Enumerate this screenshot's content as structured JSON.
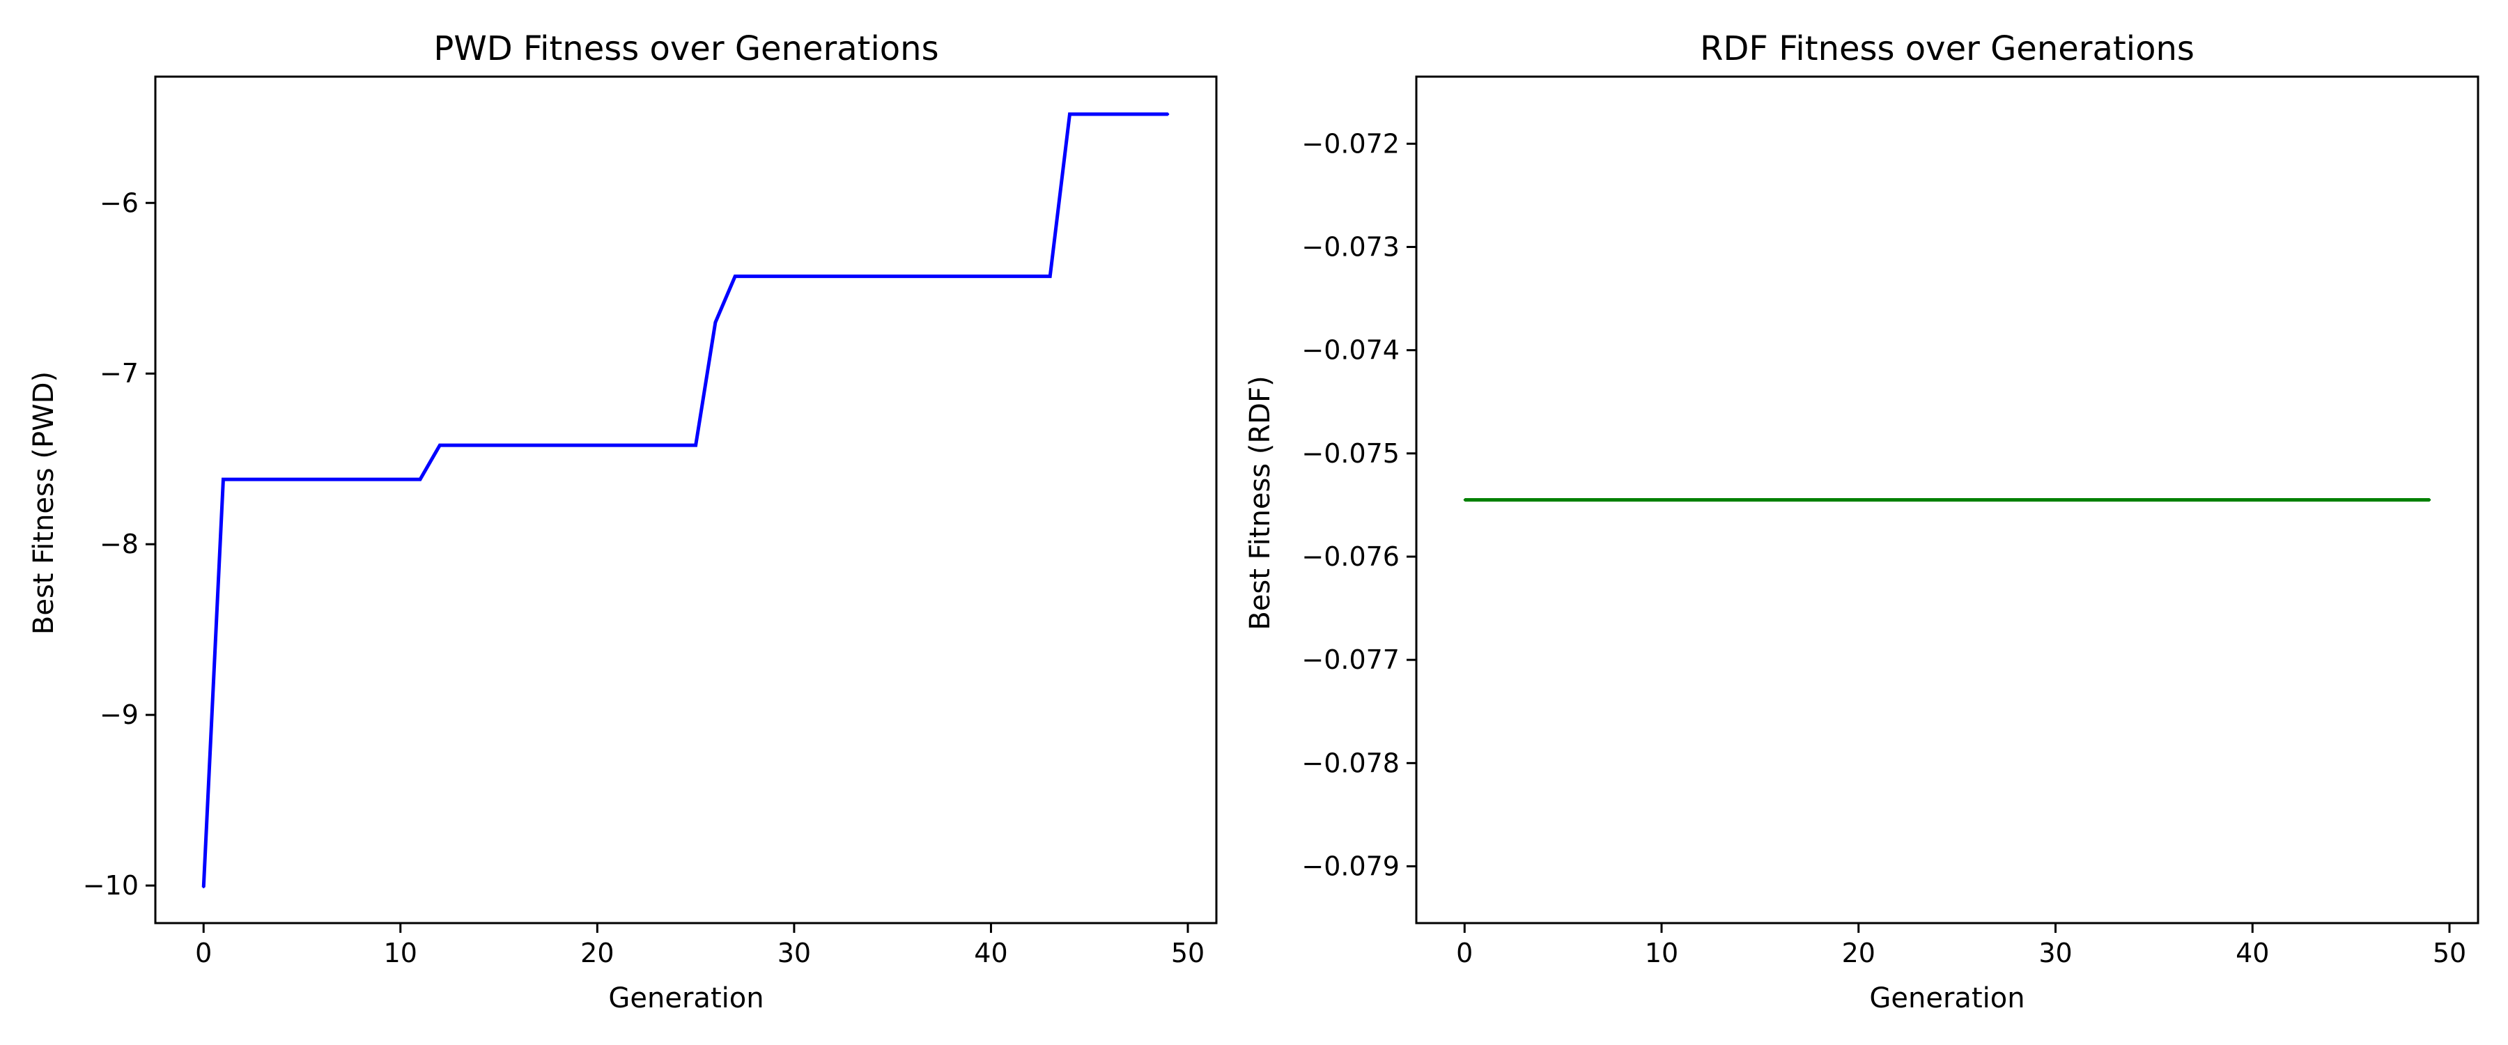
{
  "chart_data": [
    {
      "type": "line",
      "title": "PWD Fitness over Generations",
      "xlabel": "Generation",
      "ylabel": "Best Fitness (PWD)",
      "xlim": [
        -2.45,
        51.45
      ],
      "ylim": [
        -10.22,
        -5.26
      ],
      "xticks": [
        0,
        10,
        20,
        30,
        40,
        50
      ],
      "xtick_labels": [
        "0",
        "10",
        "20",
        "30",
        "40",
        "50"
      ],
      "yticks": [
        -10,
        -9,
        -8,
        -7,
        -6
      ],
      "ytick_labels": [
        "−10",
        "−9",
        "−8",
        "−7",
        "−6"
      ],
      "grid": false,
      "series": [
        {
          "color": "#0000ff",
          "x": [
            0,
            1,
            2,
            3,
            4,
            5,
            6,
            7,
            8,
            9,
            10,
            11,
            12,
            13,
            14,
            15,
            16,
            17,
            18,
            19,
            20,
            21,
            22,
            23,
            24,
            25,
            26,
            27,
            28,
            29,
            30,
            31,
            32,
            33,
            34,
            35,
            36,
            37,
            38,
            39,
            40,
            41,
            42,
            43,
            44,
            45,
            46,
            47,
            48,
            49
          ],
          "y": [
            -10.01,
            -7.62,
            -7.62,
            -7.62,
            -7.62,
            -7.62,
            -7.62,
            -7.62,
            -7.62,
            -7.62,
            -7.62,
            -7.62,
            -7.42,
            -7.42,
            -7.42,
            -7.42,
            -7.42,
            -7.42,
            -7.42,
            -7.42,
            -7.42,
            -7.42,
            -7.42,
            -7.42,
            -7.42,
            -7.42,
            -6.7,
            -6.43,
            -6.43,
            -6.43,
            -6.43,
            -6.43,
            -6.43,
            -6.43,
            -6.43,
            -6.43,
            -6.43,
            -6.43,
            -6.43,
            -6.43,
            -6.43,
            -6.43,
            -6.43,
            -6.43,
            -5.48,
            -5.48,
            -5.48,
            -5.48,
            -5.48,
            -5.48
          ]
        }
      ]
    },
    {
      "type": "line",
      "title": "RDF Fitness over Generations",
      "xlabel": "Generation",
      "ylabel": "Best Fitness (RDF)",
      "xlim": [
        -2.45,
        51.45
      ],
      "ylim": [
        -0.07955,
        -0.07135
      ],
      "xticks": [
        0,
        10,
        20,
        30,
        40,
        50
      ],
      "xtick_labels": [
        "0",
        "10",
        "20",
        "30",
        "40",
        "50"
      ],
      "yticks": [
        -0.079,
        -0.078,
        -0.077,
        -0.076,
        -0.075,
        -0.074,
        -0.073,
        -0.072
      ],
      "ytick_labels": [
        "−0.079",
        "−0.078",
        "−0.077",
        "−0.076",
        "−0.075",
        "−0.074",
        "−0.073",
        "−0.072"
      ],
      "grid": false,
      "series": [
        {
          "color": "#008000",
          "x": [
            0,
            1,
            2,
            3,
            4,
            5,
            6,
            7,
            8,
            9,
            10,
            11,
            12,
            13,
            14,
            15,
            16,
            17,
            18,
            19,
            20,
            21,
            22,
            23,
            24,
            25,
            26,
            27,
            28,
            29,
            30,
            31,
            32,
            33,
            34,
            35,
            36,
            37,
            38,
            39,
            40,
            41,
            42,
            43,
            44,
            45,
            46,
            47,
            48,
            49
          ],
          "y": [
            -0.07545,
            -0.07545,
            -0.07545,
            -0.07545,
            -0.07545,
            -0.07545,
            -0.07545,
            -0.07545,
            -0.07545,
            -0.07545,
            -0.07545,
            -0.07545,
            -0.07545,
            -0.07545,
            -0.07545,
            -0.07545,
            -0.07545,
            -0.07545,
            -0.07545,
            -0.07545,
            -0.07545,
            -0.07545,
            -0.07545,
            -0.07545,
            -0.07545,
            -0.07545,
            -0.07545,
            -0.07545,
            -0.07545,
            -0.07545,
            -0.07545,
            -0.07545,
            -0.07545,
            -0.07545,
            -0.07545,
            -0.07545,
            -0.07545,
            -0.07545,
            -0.07545,
            -0.07545,
            -0.07545,
            -0.07545,
            -0.07545,
            -0.07545,
            -0.07545,
            -0.07545,
            -0.07545,
            -0.07545,
            -0.07545,
            -0.07545
          ]
        }
      ]
    }
  ]
}
